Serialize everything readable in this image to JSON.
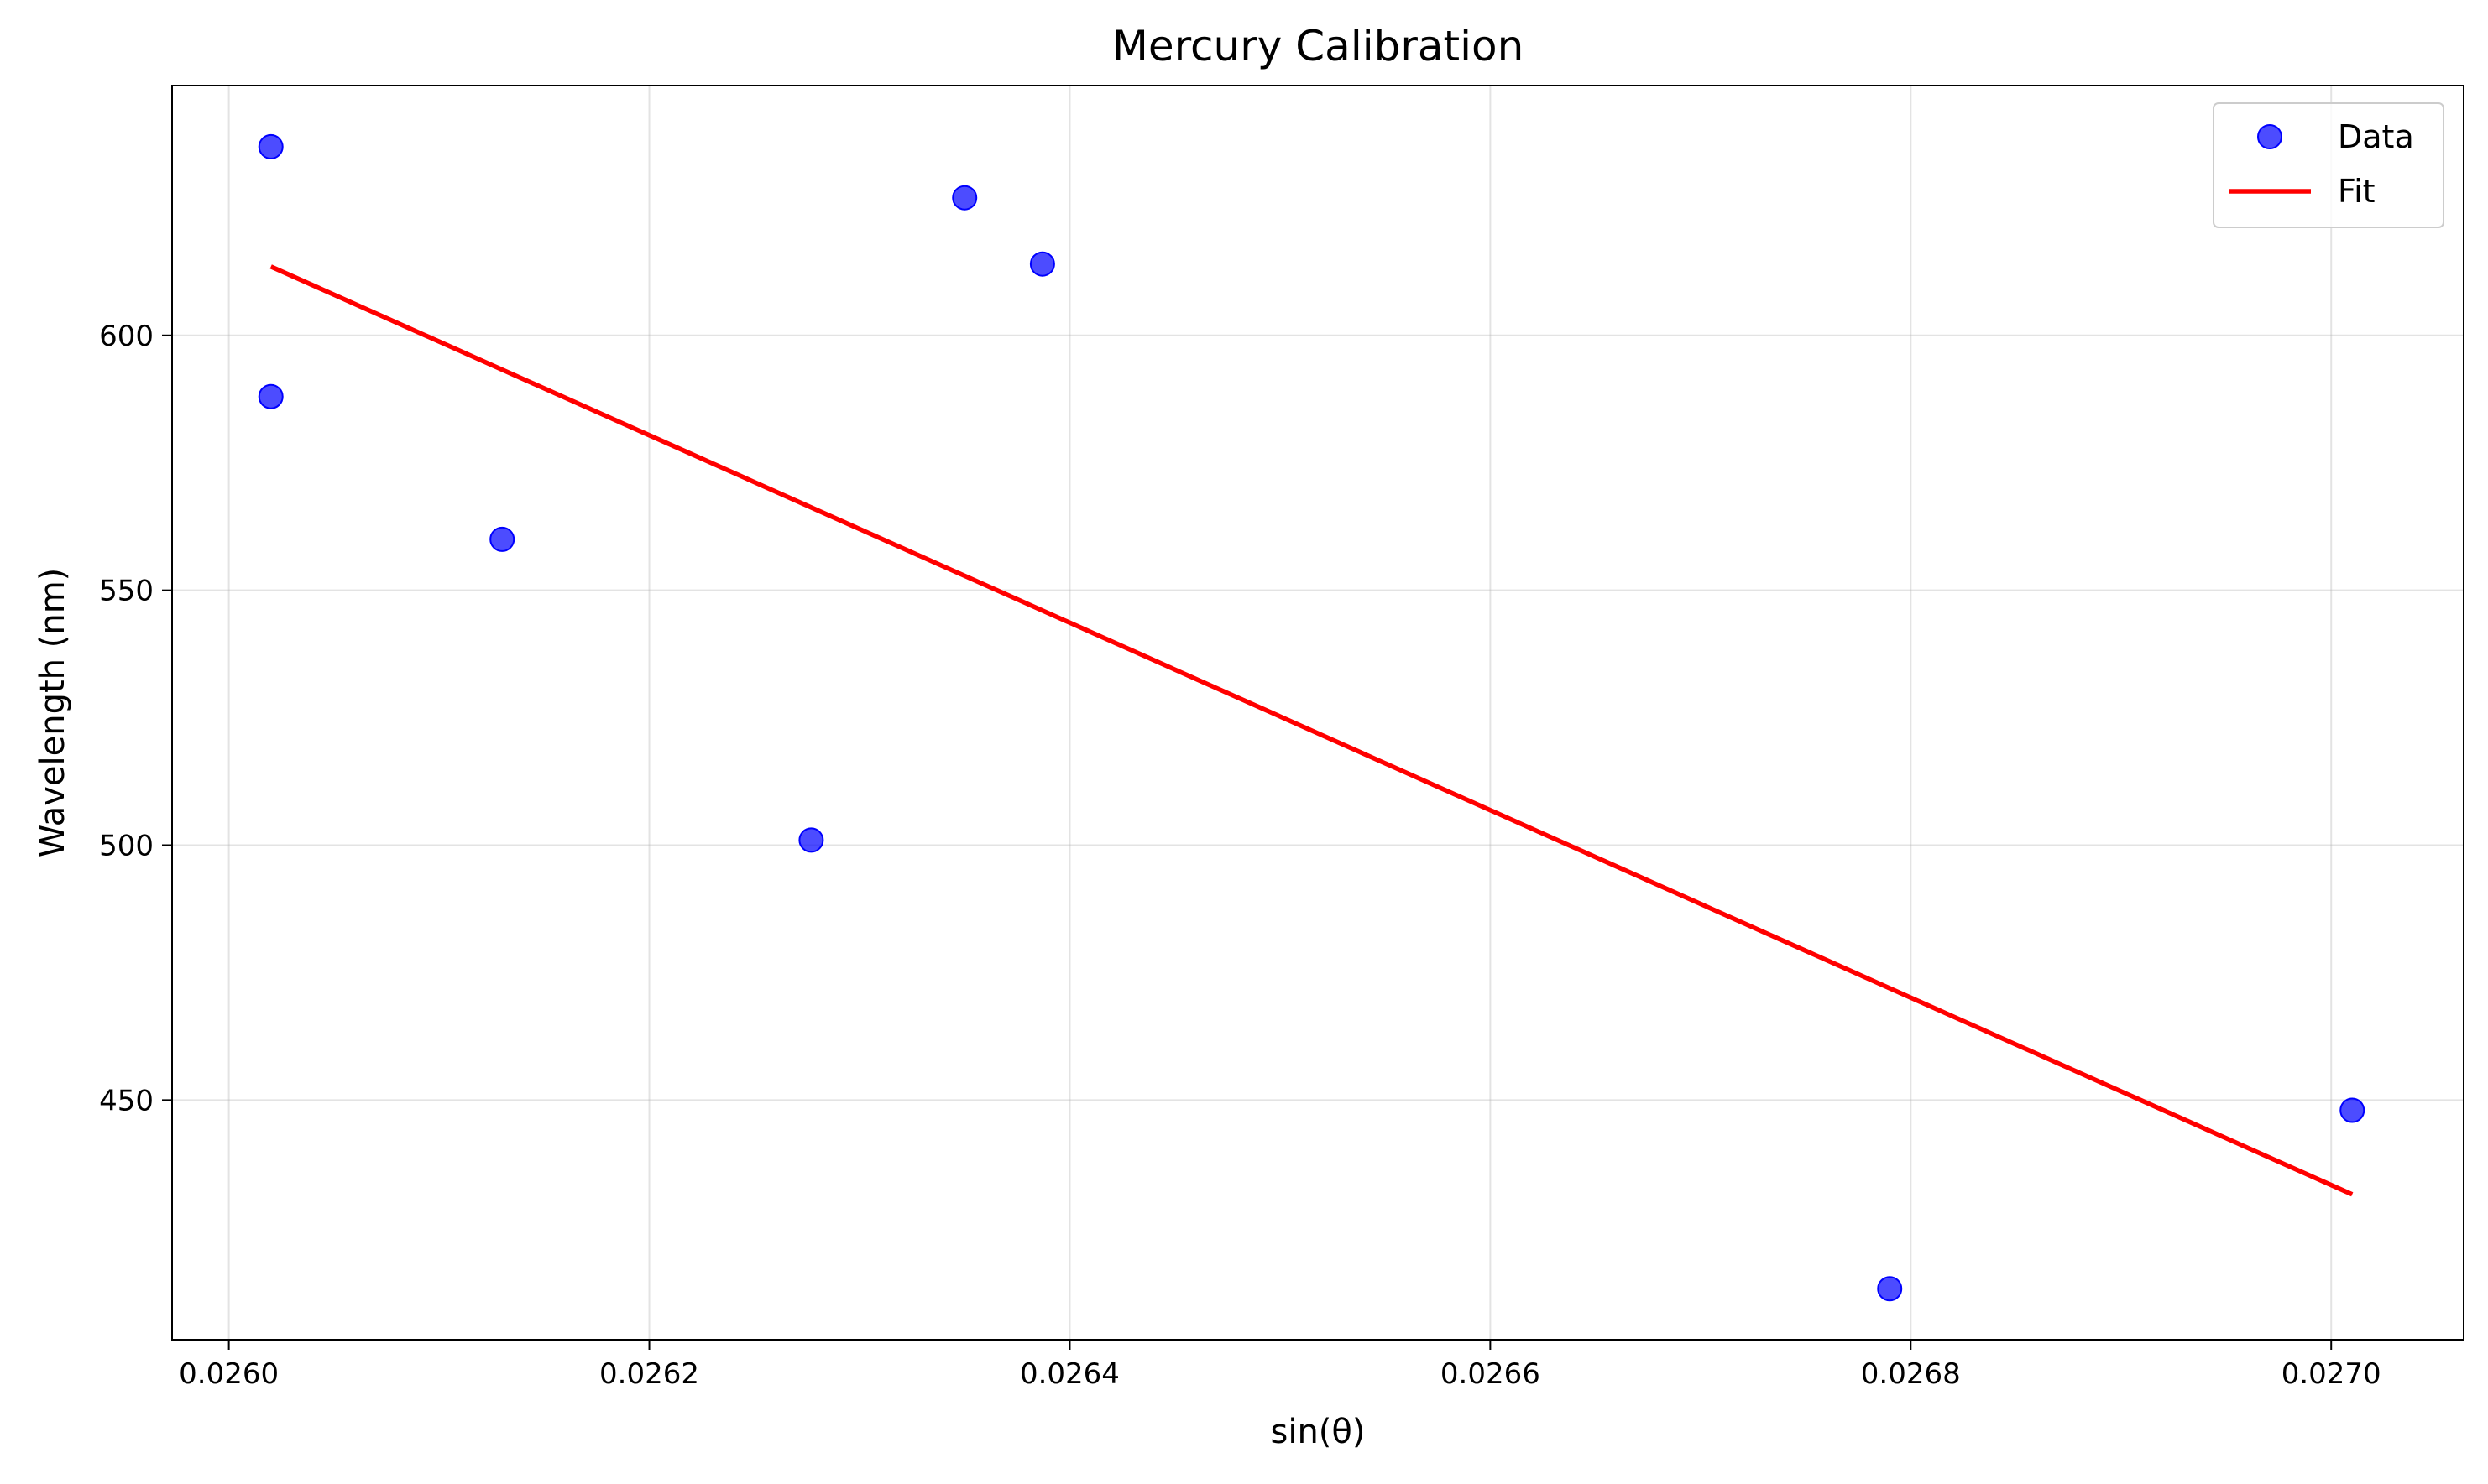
{
  "chart_data": {
    "type": "scatter",
    "title": "Mercury Calibration",
    "xlabel": "sin(θ)",
    "ylabel": "Wavelength (nm)",
    "xlim": [
      0.025973,
      0.027063
    ],
    "ylim": [
      403,
      649
    ],
    "xticks": [
      0.026,
      0.0262,
      0.0264,
      0.0266,
      0.0268,
      0.027
    ],
    "xtick_labels": [
      "0.0260",
      "0.0262",
      "0.0264",
      "0.0266",
      "0.0268",
      "0.0270"
    ],
    "yticks": [
      450,
      500,
      550,
      600
    ],
    "ytick_labels": [
      "450",
      "500",
      "550",
      "600"
    ],
    "grid": true,
    "legend_position": "top-right",
    "series": [
      {
        "name": "Data",
        "kind": "scatter",
        "color": "#0000ff",
        "points": [
          {
            "x": 0.02602,
            "y": 637
          },
          {
            "x": 0.02602,
            "y": 588
          },
          {
            "x": 0.02613,
            "y": 560
          },
          {
            "x": 0.026277,
            "y": 501
          },
          {
            "x": 0.02635,
            "y": 627
          },
          {
            "x": 0.026387,
            "y": 614
          },
          {
            "x": 0.02679,
            "y": 413
          },
          {
            "x": 0.02701,
            "y": 448
          }
        ]
      },
      {
        "name": "Fit",
        "kind": "line",
        "color": "#ff0000",
        "points": [
          {
            "x": 0.02602,
            "y": 613.5
          },
          {
            "x": 0.02701,
            "y": 431.5
          }
        ]
      }
    ]
  }
}
